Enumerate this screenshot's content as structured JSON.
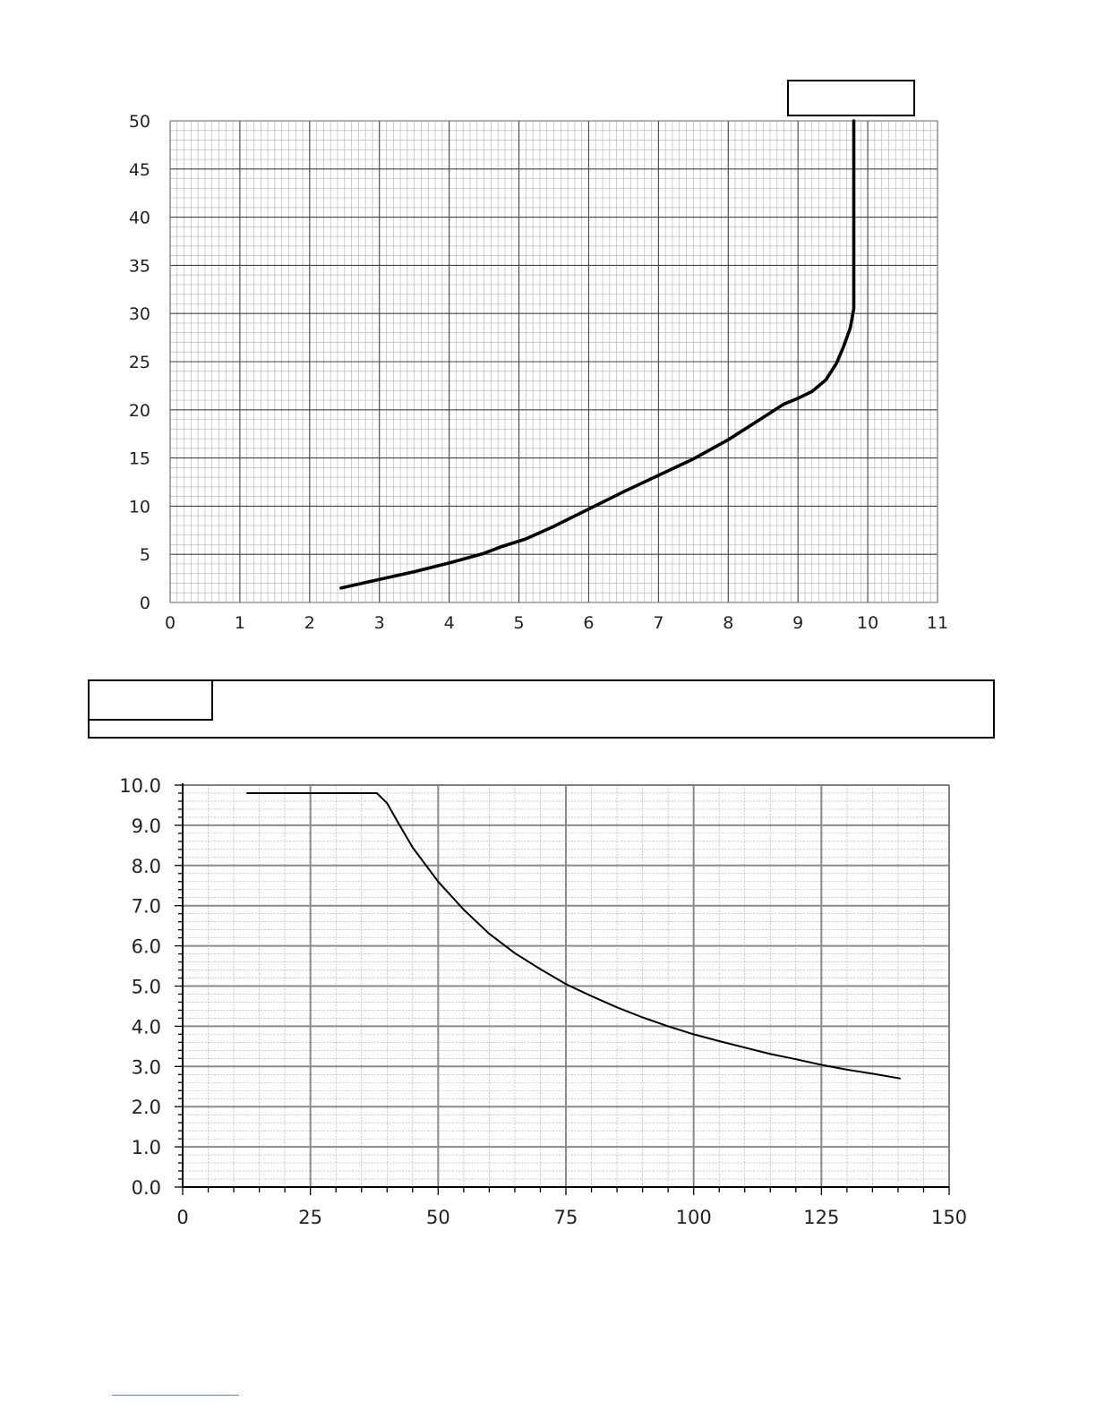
{
  "chart_data": [
    {
      "type": "line",
      "title": "",
      "xlabel": "",
      "ylabel": "",
      "xlim": [
        0,
        11
      ],
      "ylim": [
        0,
        50
      ],
      "x_ticks": [
        0,
        1,
        2,
        3,
        4,
        5,
        6,
        7,
        8,
        9,
        10,
        11
      ],
      "y_ticks": [
        0,
        5,
        10,
        15,
        20,
        25,
        30,
        35,
        40,
        45,
        50
      ],
      "grid": true,
      "series": [
        {
          "x": [
            2.45,
            3.0,
            3.5,
            4.0,
            4.5,
            4.75,
            5.1,
            5.5,
            6.0,
            6.5,
            7.0,
            7.5,
            8.0,
            8.5,
            8.8,
            9.0,
            9.2,
            9.4,
            9.55,
            9.65,
            9.75,
            9.8,
            9.8,
            9.8,
            9.8
          ],
          "y": [
            1.5,
            2.4,
            3.2,
            4.1,
            5.1,
            5.8,
            6.6,
            7.9,
            9.7,
            11.5,
            13.2,
            14.9,
            16.9,
            19.2,
            20.6,
            21.2,
            21.9,
            23.1,
            24.8,
            26.5,
            28.5,
            30.5,
            35.0,
            40.0,
            50.0
          ]
        }
      ]
    },
    {
      "type": "line",
      "title": "",
      "xlabel": "",
      "ylabel": "",
      "xlim": [
        0,
        150
      ],
      "ylim": [
        0,
        10
      ],
      "x_ticks": [
        "0",
        "25",
        "50",
        "75",
        "100",
        "125",
        "150"
      ],
      "y_ticks": [
        "0.0",
        "1.0",
        "2.0",
        "3.0",
        "4.0",
        "5.0",
        "6.0",
        "7.0",
        "8.0",
        "9.0",
        "10.0"
      ],
      "grid": true,
      "series": [
        {
          "x": [
            12.5,
            20,
            30,
            38,
            40,
            42,
            45,
            50,
            55,
            60,
            65,
            70,
            75,
            80,
            85,
            90,
            95,
            100,
            105,
            110,
            115,
            120,
            125,
            130,
            135,
            140.5
          ],
          "y": [
            9.8,
            9.8,
            9.8,
            9.8,
            9.55,
            9.1,
            8.45,
            7.6,
            6.9,
            6.3,
            5.82,
            5.42,
            5.05,
            4.75,
            4.47,
            4.22,
            4.0,
            3.8,
            3.63,
            3.47,
            3.31,
            3.18,
            3.04,
            2.92,
            2.82,
            2.7
          ]
        }
      ]
    }
  ]
}
